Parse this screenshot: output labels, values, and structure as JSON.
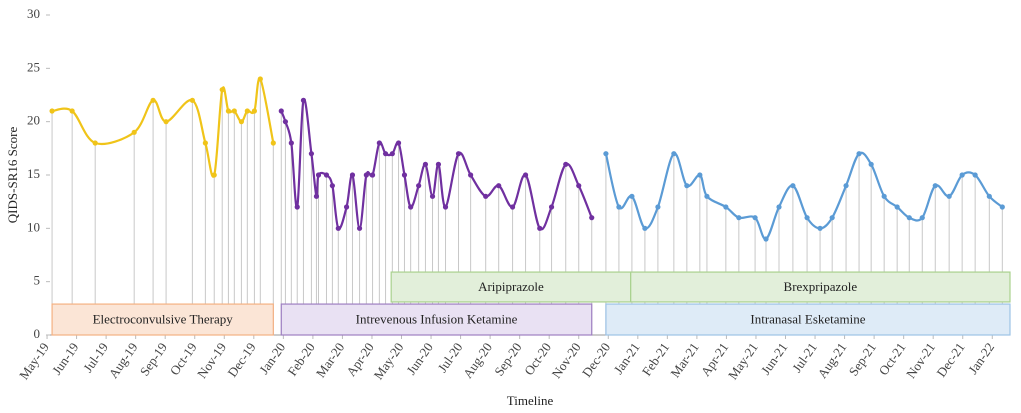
{
  "chart_data": {
    "type": "line",
    "ylabel": "QIDS-SR16 Score",
    "xlabel": "Timeline",
    "ylim": [
      0,
      30
    ],
    "yticks": [
      0,
      5,
      10,
      15,
      20,
      25,
      30
    ],
    "xlim": [
      0.1,
      32.6
    ],
    "xticks": [
      {
        "value": 0,
        "label": "May-19"
      },
      {
        "value": 1,
        "label": "Jun-19"
      },
      {
        "value": 2,
        "label": "Jul-19"
      },
      {
        "value": 3,
        "label": "Aug-19"
      },
      {
        "value": 4,
        "label": "Sep-19"
      },
      {
        "value": 5,
        "label": "Oct-19"
      },
      {
        "value": 6,
        "label": "Nov-19"
      },
      {
        "value": 7,
        "label": "Dec-19"
      },
      {
        "value": 8,
        "label": "Jan-20"
      },
      {
        "value": 9,
        "label": "Feb-20"
      },
      {
        "value": 10,
        "label": "Mar-20"
      },
      {
        "value": 11,
        "label": "Apr-20"
      },
      {
        "value": 12,
        "label": "May-20"
      },
      {
        "value": 13,
        "label": "Jun-20"
      },
      {
        "value": 14,
        "label": "Jul-20"
      },
      {
        "value": 15,
        "label": "Aug-20"
      },
      {
        "value": 16,
        "label": "Sep-20"
      },
      {
        "value": 17,
        "label": "Oct-20"
      },
      {
        "value": 18,
        "label": "Nov-20"
      },
      {
        "value": 19,
        "label": "Dec-20"
      },
      {
        "value": 20,
        "label": "Jan-21"
      },
      {
        "value": 21,
        "label": "Feb-21"
      },
      {
        "value": 22,
        "label": "Mar-21"
      },
      {
        "value": 23,
        "label": "Apr-21"
      },
      {
        "value": 24,
        "label": "May-21"
      },
      {
        "value": 25,
        "label": "Jun-21"
      },
      {
        "value": 26,
        "label": "Jul-21"
      },
      {
        "value": 27,
        "label": "Aug-21"
      },
      {
        "value": 28,
        "label": "Sep-21"
      },
      {
        "value": 29,
        "label": "Oct-21"
      },
      {
        "value": 30,
        "label": "Nov-21"
      },
      {
        "value": 31,
        "label": "Dec-21"
      },
      {
        "value": 32,
        "label": "Jan-22"
      }
    ],
    "series": [
      {
        "color": "#f0c419",
        "x": [
          0.17,
          0.85,
          1.63,
          2.95,
          3.59,
          4.03,
          4.92,
          5.36,
          5.66,
          5.93,
          6.14,
          6.34,
          6.58,
          6.78,
          7.02,
          7.22,
          7.66
        ],
        "values": [
          21,
          21,
          18,
          19,
          22,
          20,
          22,
          18,
          15,
          23,
          21,
          21,
          20,
          21,
          21,
          24,
          18
        ]
      },
      {
        "color": "#7030a0",
        "x": [
          7.93,
          8.07,
          8.27,
          8.47,
          8.68,
          8.95,
          9.12,
          9.19,
          9.46,
          9.66,
          9.86,
          10.14,
          10.34,
          10.58,
          10.81,
          11.02,
          11.25,
          11.46,
          11.69,
          11.9,
          12.1,
          12.31,
          12.58,
          12.81,
          13.05,
          13.25,
          13.49,
          13.93,
          14.34,
          14.85,
          15.29,
          15.76,
          16.2,
          16.68,
          17.08,
          17.56,
          18.0,
          18.44
        ],
        "values": [
          21,
          20,
          18,
          12,
          22,
          17,
          13,
          15,
          15,
          14,
          10,
          12,
          15,
          10,
          15,
          15,
          18,
          17,
          17,
          18,
          15,
          12,
          14,
          16,
          13,
          16,
          12,
          17,
          15,
          13,
          14,
          12,
          15,
          10,
          12,
          16,
          14,
          11
        ]
      },
      {
        "color": "#5b9bd5",
        "x": [
          18.92,
          19.36,
          19.8,
          20.24,
          20.68,
          21.22,
          21.66,
          22.1,
          22.34,
          22.98,
          23.42,
          23.97,
          24.34,
          24.78,
          25.25,
          25.73,
          26.17,
          26.58,
          27.05,
          27.49,
          27.9,
          28.34,
          28.78,
          29.19,
          29.63,
          30.07,
          30.54,
          30.98,
          31.42,
          31.9,
          32.34
        ],
        "values": [
          17,
          12,
          13,
          10,
          12,
          17,
          14,
          15,
          13,
          12,
          11,
          11,
          9,
          12,
          14,
          11,
          10,
          11,
          14,
          17,
          16,
          13,
          12,
          11,
          11,
          14,
          13,
          15,
          15,
          13,
          12
        ]
      }
    ],
    "treatments": [
      {
        "label": "Electroconvulsive Therapy",
        "start": 0.17,
        "end": 7.66,
        "y": [
          0,
          2.9
        ],
        "fill": "#fbe5d6",
        "stroke": "#f4b183"
      },
      {
        "label": "Intrevenous Infusion Ketamine",
        "start": 7.93,
        "end": 18.44,
        "y": [
          0,
          2.9
        ],
        "fill": "#e9e1f3",
        "stroke": "#9e7fc1"
      },
      {
        "label": "Aripiprazole",
        "start": 11.65,
        "end": 19.76,
        "y": [
          3.1,
          5.9
        ],
        "fill": "#e2efda",
        "stroke": "#a9d18e"
      },
      {
        "label": "Brexpripazole",
        "start": 19.76,
        "end": 32.6,
        "y": [
          3.1,
          5.9
        ],
        "fill": "#e2efda",
        "stroke": "#a9d18e"
      },
      {
        "label": "Intranasal Esketamine",
        "start": 18.92,
        "end": 32.6,
        "y": [
          0,
          2.9
        ],
        "fill": "#deebf7",
        "stroke": "#9dc3e6"
      }
    ]
  }
}
